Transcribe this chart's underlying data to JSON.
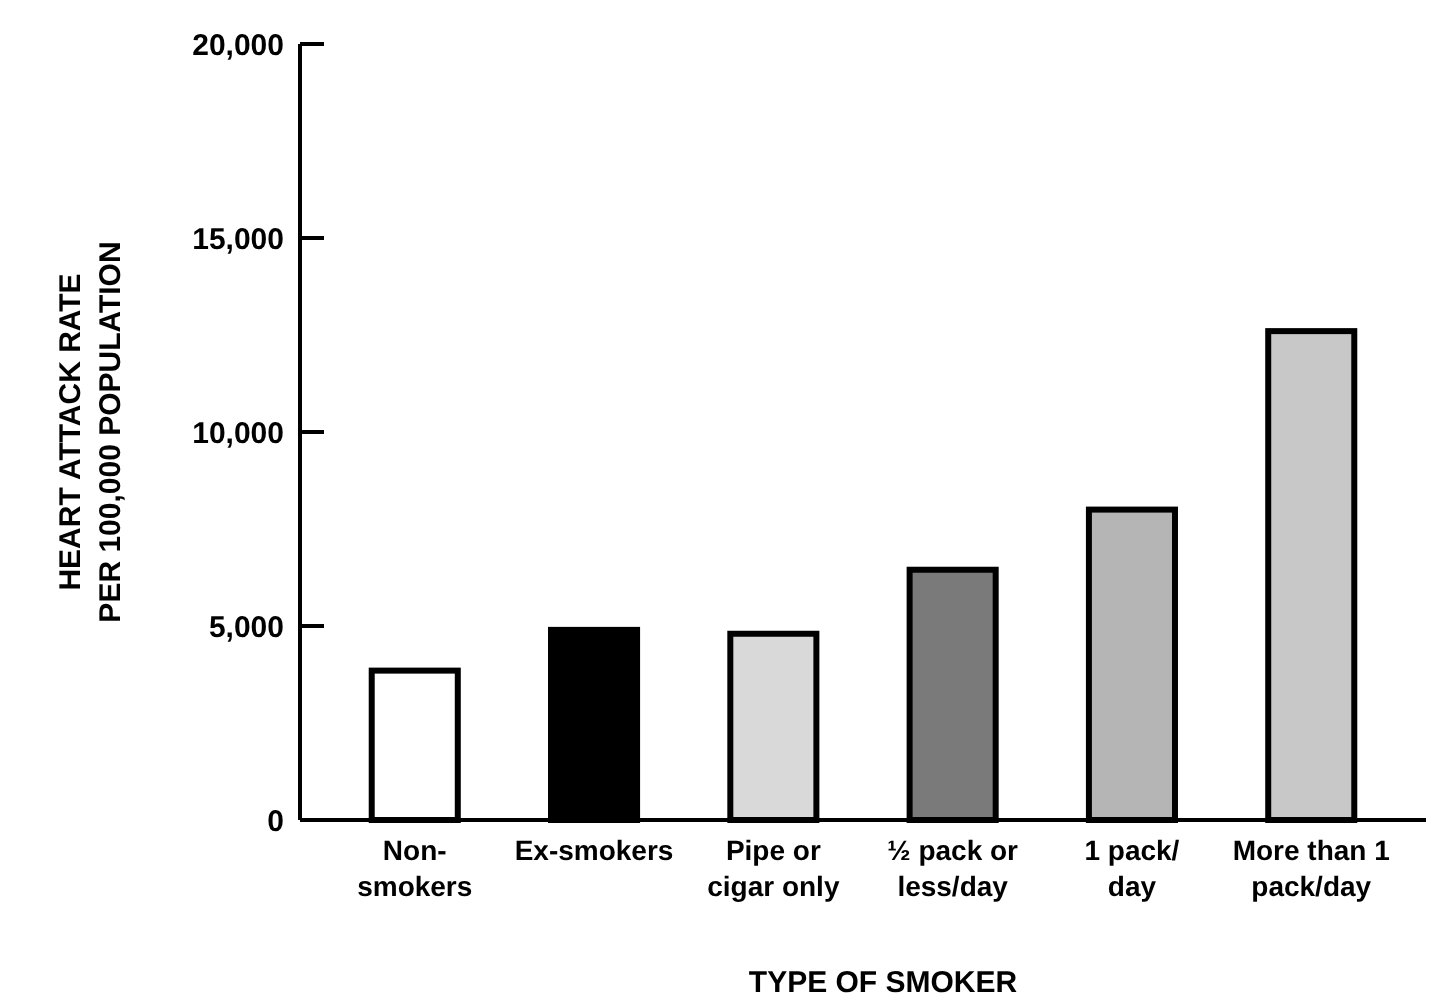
{
  "chart_data": {
    "type": "bar",
    "xlabel": "TYPE OF SMOKER",
    "ylabel": "HEART ATTACK RATE\nPER 100,000 POPULATION",
    "categories": [
      "Non-\nsmokers",
      "Ex-smokers",
      "Pipe or\ncigar only",
      "½ pack or\nless/day",
      "1 pack/\nday",
      "More than 1\npack/day"
    ],
    "values": [
      3850,
      4900,
      4800,
      6450,
      8000,
      12600
    ],
    "colors": [
      "#ffffff",
      "#000000",
      "#d9d9d9",
      "#7a7a7a",
      "#b5b5b5",
      "#c8c8c8"
    ],
    "ylim": [
      0,
      20000
    ],
    "yticks": [
      {
        "value": 0,
        "label": "0"
      },
      {
        "value": 5000,
        "label": "5,000"
      },
      {
        "value": 10000,
        "label": "10,000"
      },
      {
        "value": 15000,
        "label": "15,000"
      },
      {
        "value": 20000,
        "label": "20,000"
      }
    ],
    "grid": false
  }
}
